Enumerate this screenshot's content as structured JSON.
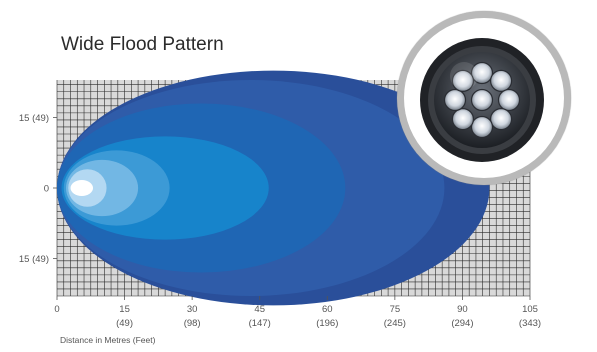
{
  "chart_data": {
    "type": "area",
    "title": "Wide Flood Pattern",
    "xlabel": "Distance in Metres (Feet)",
    "ylabel": "",
    "xlim": [
      0,
      105
    ],
    "ylim": [
      -23,
      23
    ],
    "grid": true,
    "x_ticks": [
      {
        "value": 0,
        "label": "0",
        "sub": ""
      },
      {
        "value": 15,
        "label": "15",
        "sub": "(49)"
      },
      {
        "value": 30,
        "label": "30",
        "sub": "(98)"
      },
      {
        "value": 45,
        "label": "45",
        "sub": "(147)"
      },
      {
        "value": 60,
        "label": "60",
        "sub": "(196)"
      },
      {
        "value": 75,
        "label": "75",
        "sub": "(245)"
      },
      {
        "value": 90,
        "label": "90",
        "sub": "(294)"
      },
      {
        "value": 105,
        "label": "105",
        "sub": "(343)"
      }
    ],
    "y_ticks": [
      {
        "value": 15,
        "label": "15 (49)"
      },
      {
        "value": 0,
        "label": "0"
      },
      {
        "value": -15,
        "label": "15 (49)"
      }
    ],
    "contours": [
      {
        "start": 0,
        "end": 96,
        "half_width": 25,
        "color": "#2a4f9a"
      },
      {
        "start": 0,
        "end": 86,
        "half_width": 23,
        "color": "#2f5ca9"
      },
      {
        "start": 0,
        "end": 64,
        "half_width": 18,
        "color": "#1f66b4"
      },
      {
        "start": 1,
        "end": 47,
        "half_width": 11,
        "color": "#1784cb"
      },
      {
        "start": 1.5,
        "end": 25,
        "half_width": 8,
        "color": "#3c9ad6"
      },
      {
        "start": 2,
        "end": 18,
        "half_width": 6,
        "color": "#72b7e4"
      },
      {
        "start": 2.5,
        "end": 11,
        "half_width": 4,
        "color": "#b3d8f2"
      },
      {
        "start": 3,
        "end": 8,
        "half_width": 1.7,
        "color": "#ffffff"
      }
    ]
  },
  "inset": {
    "icon": "led-work-light-photo"
  }
}
